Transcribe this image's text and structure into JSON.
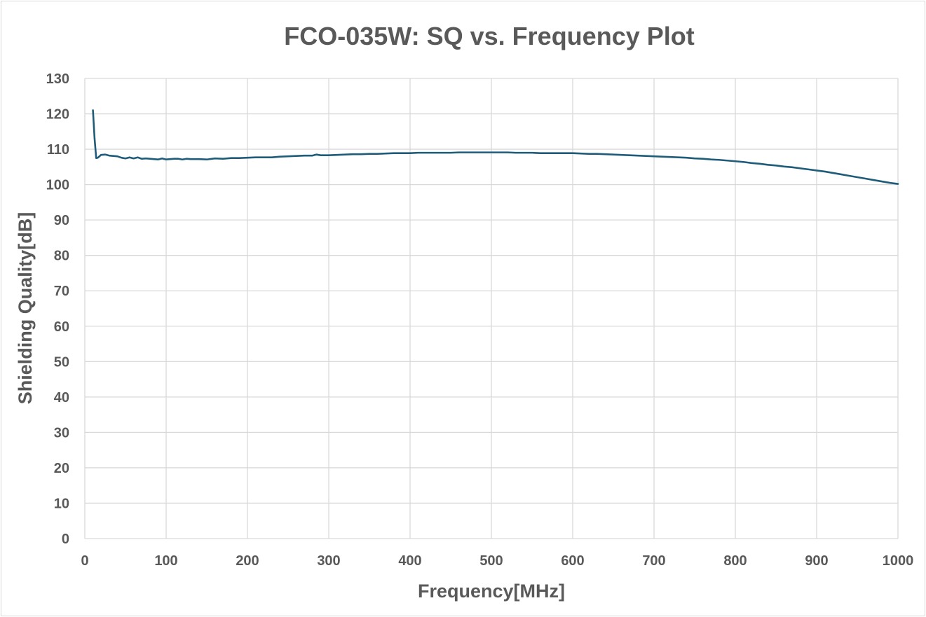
{
  "chart_data": {
    "type": "line",
    "title": "FCO-035W: SQ vs. Frequency Plot",
    "xlabel": "Frequency[MHz]",
    "ylabel": "Shielding Quality[dB]",
    "xlim": [
      0,
      1000
    ],
    "ylim": [
      0,
      130
    ],
    "xticks": [
      0,
      100,
      200,
      300,
      400,
      500,
      600,
      700,
      800,
      900,
      1000
    ],
    "yticks": [
      0,
      10,
      20,
      30,
      40,
      50,
      60,
      70,
      80,
      90,
      100,
      110,
      120,
      130
    ],
    "grid": true,
    "legend": "none",
    "series": [
      {
        "color": "#1f5c7a",
        "x": [
          10,
          12,
          14,
          16,
          20,
          25,
          30,
          35,
          40,
          45,
          50,
          55,
          60,
          65,
          70,
          75,
          80,
          85,
          90,
          95,
          100,
          105,
          110,
          115,
          120,
          125,
          130,
          140,
          150,
          160,
          170,
          180,
          190,
          200,
          210,
          220,
          230,
          240,
          250,
          260,
          270,
          280,
          285,
          290,
          300,
          310,
          320,
          330,
          340,
          350,
          360,
          370,
          380,
          390,
          400,
          410,
          420,
          430,
          440,
          450,
          460,
          470,
          480,
          490,
          500,
          510,
          520,
          530,
          540,
          550,
          560,
          570,
          580,
          590,
          600,
          610,
          620,
          630,
          640,
          650,
          660,
          670,
          680,
          690,
          700,
          710,
          720,
          730,
          740,
          750,
          760,
          770,
          780,
          790,
          800,
          810,
          820,
          830,
          840,
          850,
          860,
          870,
          880,
          890,
          900,
          910,
          920,
          930,
          940,
          950,
          960,
          970,
          980,
          990,
          1000
        ],
        "y": [
          121,
          113,
          107.5,
          107.6,
          108.4,
          108.5,
          108.2,
          108.1,
          108.0,
          107.6,
          107.4,
          107.7,
          107.4,
          107.7,
          107.3,
          107.4,
          107.3,
          107.2,
          107.1,
          107.4,
          107.1,
          107.2,
          107.3,
          107.3,
          107.1,
          107.3,
          107.2,
          107.2,
          107.1,
          107.4,
          107.3,
          107.5,
          107.5,
          107.6,
          107.7,
          107.7,
          107.7,
          107.9,
          108.0,
          108.1,
          108.2,
          108.2,
          108.5,
          108.3,
          108.3,
          108.4,
          108.5,
          108.6,
          108.6,
          108.7,
          108.7,
          108.8,
          108.9,
          108.9,
          108.9,
          109.0,
          109.0,
          109.0,
          109.0,
          109.0,
          109.1,
          109.1,
          109.1,
          109.1,
          109.1,
          109.1,
          109.1,
          109.0,
          109.0,
          109.0,
          108.9,
          108.9,
          108.9,
          108.9,
          108.9,
          108.8,
          108.7,
          108.7,
          108.6,
          108.5,
          108.4,
          108.3,
          108.2,
          108.1,
          108.0,
          107.9,
          107.8,
          107.7,
          107.6,
          107.4,
          107.3,
          107.1,
          107.0,
          106.8,
          106.6,
          106.4,
          106.1,
          105.9,
          105.6,
          105.4,
          105.1,
          104.9,
          104.6,
          104.3,
          104.0,
          103.7,
          103.3,
          102.9,
          102.5,
          102.1,
          101.7,
          101.3,
          100.9,
          100.5,
          100.2
        ]
      }
    ]
  }
}
